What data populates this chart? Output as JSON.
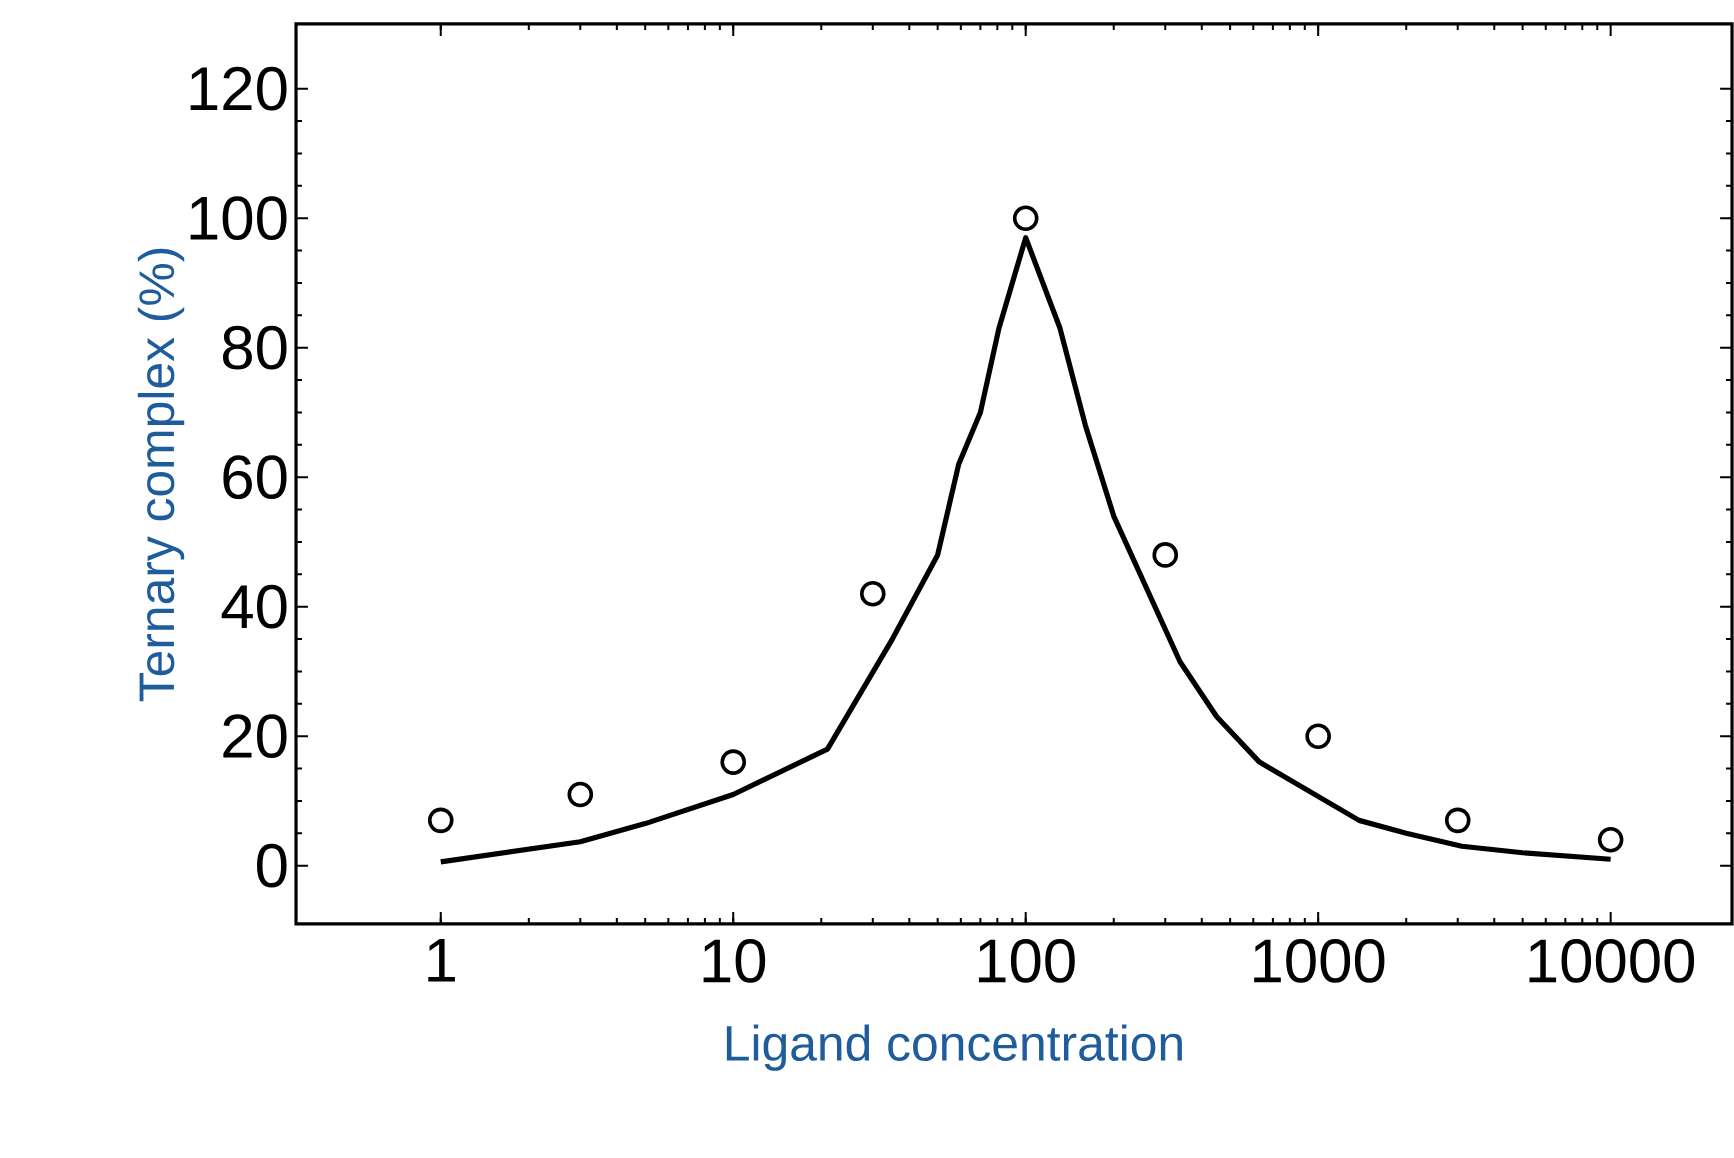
{
  "chart_data": {
    "type": "scatter",
    "xlabel": "Ligand concentration",
    "ylabel": "Ternary complex (%)",
    "log": "x",
    "grid": false,
    "xlim": [
      0.32,
      26000
    ],
    "ylim": [
      -9,
      130
    ],
    "xticks": [
      1,
      10,
      100,
      1000,
      10000
    ],
    "yticks": [
      0,
      20,
      40,
      60,
      80,
      100,
      120
    ],
    "series": [
      {
        "color": "#000000",
        "marker": "circle",
        "x": [
          1,
          3,
          10,
          30,
          100,
          300,
          1000,
          3000,
          10000
        ],
        "values": [
          7,
          11,
          16,
          42,
          100,
          48,
          20,
          7,
          4
        ]
      },
      {
        "type": "line",
        "color": "#000000",
        "marker": "none",
        "line_style": "solid",
        "x": [
          1,
          3,
          5,
          10,
          21,
          35,
          50,
          59,
          70,
          81,
          100,
          131,
          160,
          200,
          337,
          450,
          630,
          1380,
          2000,
          3100,
          5000,
          10000
        ],
        "values": [
          0.6,
          3.7,
          6.5,
          11,
          18,
          35,
          48,
          62,
          70,
          83,
          97,
          83,
          68,
          54,
          31.5,
          23,
          16,
          7,
          5,
          3,
          2,
          1
        ]
      }
    ]
  }
}
